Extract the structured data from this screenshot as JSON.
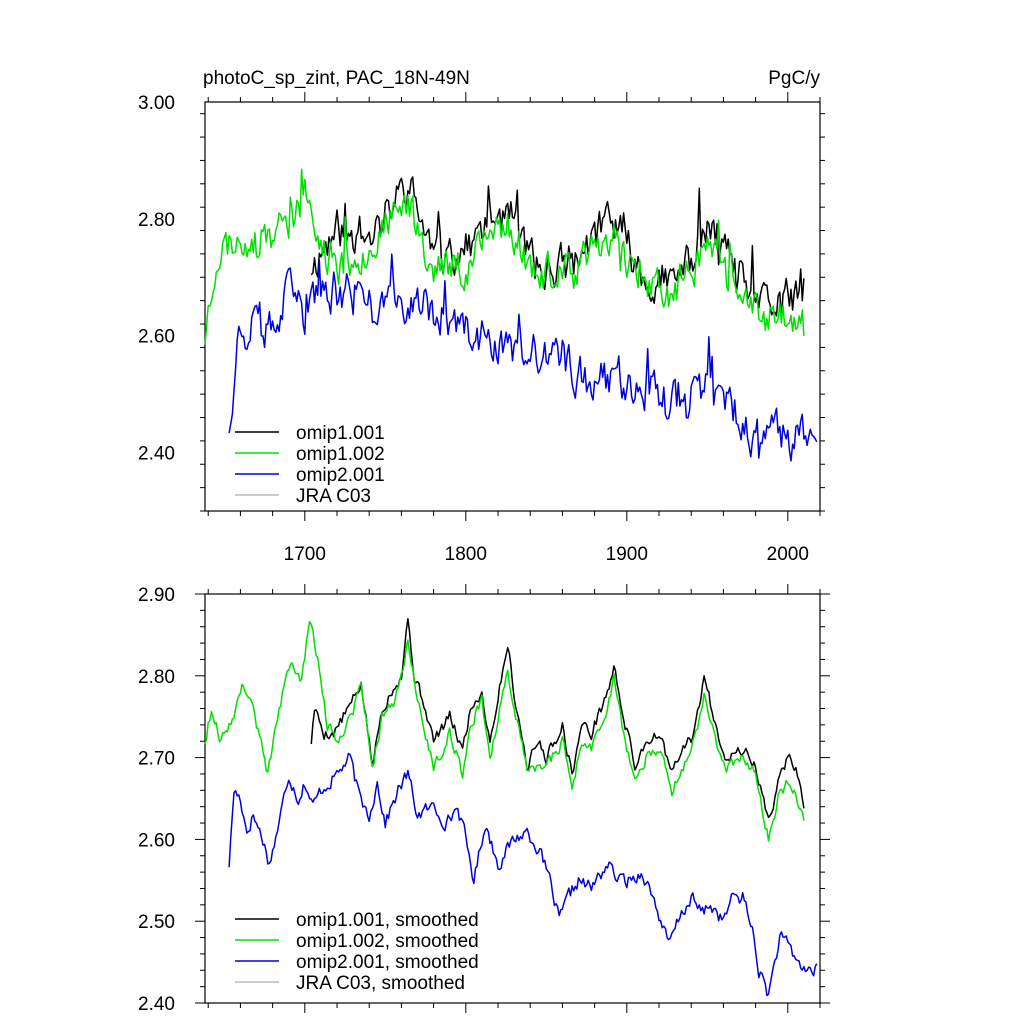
{
  "header": {
    "title": "photoC_sp_zint, PAC_18N-49N",
    "units": "PgC/y"
  },
  "colors": {
    "omip1_001": "#000000",
    "omip1_002": "#00e000",
    "omip2_001": "#0000dd",
    "jra": "#bbbbbb"
  },
  "chart_data": [
    {
      "type": "line",
      "title": "photoC_sp_zint, PAC_18N-49N",
      "units": "PgC/y",
      "xlim": [
        1638,
        2020
      ],
      "ylim": [
        2.3,
        3.0
      ],
      "xticks": [
        1700,
        1800,
        1900,
        2000
      ],
      "xtick_labels": [
        "1700",
        "1800",
        "1900",
        "2000"
      ],
      "yticks": [
        2.4,
        2.6,
        2.8,
        3.0
      ],
      "ytick_labels": [
        "2.40",
        "2.60",
        "2.80",
        "3.00"
      ],
      "legend_position": "bottom-left",
      "series": [
        {
          "name": "omip1.001",
          "color": "#000000",
          "seed": 11,
          "noise": 0.055,
          "anchors": [
            [
              1704,
              2.72
            ],
            [
              1720,
              2.78
            ],
            [
              1740,
              2.77
            ],
            [
              1764,
              2.86
            ],
            [
              1780,
              2.74
            ],
            [
              1800,
              2.75
            ],
            [
              1825,
              2.82
            ],
            [
              1845,
              2.71
            ],
            [
              1870,
              2.73
            ],
            [
              1890,
              2.81
            ],
            [
              1910,
              2.7
            ],
            [
              1930,
              2.69
            ],
            [
              1950,
              2.78
            ],
            [
              1970,
              2.7
            ],
            [
              1985,
              2.65
            ],
            [
              2000,
              2.66
            ],
            [
              2010,
              2.68
            ]
          ]
        },
        {
          "name": "omip1.002",
          "color": "#00e000",
          "seed": 23,
          "noise": 0.055,
          "anchors": [
            [
              1638,
              2.6
            ],
            [
              1645,
              2.74
            ],
            [
              1660,
              2.77
            ],
            [
              1675,
              2.75
            ],
            [
              1690,
              2.8
            ],
            [
              1700,
              2.84
            ],
            [
              1710,
              2.75
            ],
            [
              1720,
              2.72
            ],
            [
              1740,
              2.75
            ],
            [
              1764,
              2.83
            ],
            [
              1780,
              2.72
            ],
            [
              1800,
              2.72
            ],
            [
              1825,
              2.8
            ],
            [
              1845,
              2.7
            ],
            [
              1870,
              2.71
            ],
            [
              1890,
              2.78
            ],
            [
              1910,
              2.69
            ],
            [
              1930,
              2.67
            ],
            [
              1950,
              2.76
            ],
            [
              1970,
              2.68
            ],
            [
              1985,
              2.62
            ],
            [
              2000,
              2.64
            ],
            [
              2010,
              2.62
            ]
          ]
        },
        {
          "name": "omip2.001",
          "color": "#0000dd",
          "seed": 37,
          "noise": 0.06,
          "anchors": [
            [
              1653,
              2.45
            ],
            [
              1658,
              2.6
            ],
            [
              1670,
              2.62
            ],
            [
              1680,
              2.6
            ],
            [
              1690,
              2.67
            ],
            [
              1700,
              2.64
            ],
            [
              1720,
              2.68
            ],
            [
              1740,
              2.66
            ],
            [
              1760,
              2.66
            ],
            [
              1780,
              2.64
            ],
            [
              1800,
              2.6
            ],
            [
              1820,
              2.58
            ],
            [
              1840,
              2.57
            ],
            [
              1860,
              2.55
            ],
            [
              1880,
              2.53
            ],
            [
              1900,
              2.53
            ],
            [
              1920,
              2.5
            ],
            [
              1940,
              2.5
            ],
            [
              1960,
              2.5
            ],
            [
              1980,
              2.42
            ],
            [
              2000,
              2.43
            ],
            [
              2018,
              2.43
            ]
          ]
        },
        {
          "name": "JRA C03",
          "color": "#bbbbbb",
          "anchors": []
        }
      ]
    },
    {
      "type": "line",
      "title": "",
      "xlim": [
        1638,
        2020
      ],
      "ylim": [
        2.4,
        2.9
      ],
      "xticks": [
        1700,
        1800,
        1900,
        2000
      ],
      "xtick_labels": [],
      "yticks": [
        2.4,
        2.5,
        2.6,
        2.7,
        2.8,
        2.9
      ],
      "ytick_labels": [
        "2.40",
        "2.50",
        "2.60",
        "2.70",
        "2.80",
        "2.90"
      ],
      "legend_position": "bottom-left",
      "series": [
        {
          "name": "omip1.001, smoothed",
          "color": "#000000",
          "seed": 5,
          "noise": 0.012,
          "anchors": [
            [
              1704,
              2.72
            ],
            [
              1706,
              2.76
            ],
            [
              1712,
              2.73
            ],
            [
              1718,
              2.73
            ],
            [
              1730,
              2.77
            ],
            [
              1735,
              2.79
            ],
            [
              1742,
              2.69
            ],
            [
              1748,
              2.76
            ],
            [
              1756,
              2.79
            ],
            [
              1760,
              2.8
            ],
            [
              1764,
              2.87
            ],
            [
              1768,
              2.8
            ],
            [
              1775,
              2.76
            ],
            [
              1780,
              2.72
            ],
            [
              1790,
              2.75
            ],
            [
              1798,
              2.71
            ],
            [
              1803,
              2.76
            ],
            [
              1810,
              2.78
            ],
            [
              1815,
              2.72
            ],
            [
              1826,
              2.84
            ],
            [
              1830,
              2.78
            ],
            [
              1838,
              2.69
            ],
            [
              1845,
              2.72
            ],
            [
              1850,
              2.7
            ],
            [
              1860,
              2.74
            ],
            [
              1866,
              2.68
            ],
            [
              1872,
              2.74
            ],
            [
              1878,
              2.73
            ],
            [
              1888,
              2.78
            ],
            [
              1892,
              2.81
            ],
            [
              1898,
              2.75
            ],
            [
              1905,
              2.69
            ],
            [
              1912,
              2.72
            ],
            [
              1920,
              2.73
            ],
            [
              1928,
              2.68
            ],
            [
              1935,
              2.71
            ],
            [
              1942,
              2.73
            ],
            [
              1948,
              2.8
            ],
            [
              1955,
              2.74
            ],
            [
              1962,
              2.7
            ],
            [
              1972,
              2.71
            ],
            [
              1980,
              2.69
            ],
            [
              1988,
              2.62
            ],
            [
              1994,
              2.67
            ],
            [
              2000,
              2.7
            ],
            [
              2005,
              2.69
            ],
            [
              2010,
              2.64
            ]
          ]
        },
        {
          "name": "omip1.002, smoothed",
          "color": "#00e000",
          "seed": 9,
          "noise": 0.012,
          "anchors": [
            [
              1638,
              2.72
            ],
            [
              1642,
              2.76
            ],
            [
              1648,
              2.72
            ],
            [
              1655,
              2.75
            ],
            [
              1662,
              2.79
            ],
            [
              1668,
              2.76
            ],
            [
              1677,
              2.68
            ],
            [
              1684,
              2.76
            ],
            [
              1692,
              2.82
            ],
            [
              1698,
              2.79
            ],
            [
              1703,
              2.87
            ],
            [
              1708,
              2.82
            ],
            [
              1714,
              2.74
            ],
            [
              1720,
              2.72
            ],
            [
              1730,
              2.76
            ],
            [
              1735,
              2.79
            ],
            [
              1742,
              2.69
            ],
            [
              1748,
              2.75
            ],
            [
              1756,
              2.77
            ],
            [
              1764,
              2.84
            ],
            [
              1770,
              2.77
            ],
            [
              1780,
              2.69
            ],
            [
              1790,
              2.73
            ],
            [
              1798,
              2.68
            ],
            [
              1803,
              2.74
            ],
            [
              1810,
              2.77
            ],
            [
              1815,
              2.7
            ],
            [
              1826,
              2.81
            ],
            [
              1830,
              2.76
            ],
            [
              1838,
              2.69
            ],
            [
              1850,
              2.69
            ],
            [
              1860,
              2.72
            ],
            [
              1866,
              2.66
            ],
            [
              1872,
              2.72
            ],
            [
              1878,
              2.71
            ],
            [
              1888,
              2.76
            ],
            [
              1892,
              2.8
            ],
            [
              1898,
              2.73
            ],
            [
              1905,
              2.67
            ],
            [
              1912,
              2.7
            ],
            [
              1920,
              2.71
            ],
            [
              1928,
              2.66
            ],
            [
              1935,
              2.69
            ],
            [
              1942,
              2.72
            ],
            [
              1948,
              2.78
            ],
            [
              1955,
              2.72
            ],
            [
              1962,
              2.69
            ],
            [
              1972,
              2.7
            ],
            [
              1980,
              2.68
            ],
            [
              1988,
              2.6
            ],
            [
              1994,
              2.65
            ],
            [
              2000,
              2.67
            ],
            [
              2005,
              2.66
            ],
            [
              2010,
              2.62
            ]
          ]
        },
        {
          "name": "omip2.001, smoothed",
          "color": "#0000dd",
          "seed": 17,
          "noise": 0.014,
          "anchors": [
            [
              1653,
              2.57
            ],
            [
              1656,
              2.66
            ],
            [
              1660,
              2.65
            ],
            [
              1664,
              2.61
            ],
            [
              1668,
              2.63
            ],
            [
              1674,
              2.6
            ],
            [
              1678,
              2.57
            ],
            [
              1684,
              2.62
            ],
            [
              1690,
              2.68
            ],
            [
              1696,
              2.65
            ],
            [
              1700,
              2.67
            ],
            [
              1705,
              2.64
            ],
            [
              1710,
              2.66
            ],
            [
              1720,
              2.68
            ],
            [
              1728,
              2.7
            ],
            [
              1734,
              2.65
            ],
            [
              1740,
              2.63
            ],
            [
              1745,
              2.67
            ],
            [
              1750,
              2.62
            ],
            [
              1758,
              2.66
            ],
            [
              1764,
              2.68
            ],
            [
              1770,
              2.63
            ],
            [
              1780,
              2.64
            ],
            [
              1788,
              2.62
            ],
            [
              1795,
              2.64
            ],
            [
              1800,
              2.6
            ],
            [
              1805,
              2.55
            ],
            [
              1812,
              2.62
            ],
            [
              1820,
              2.57
            ],
            [
              1830,
              2.6
            ],
            [
              1838,
              2.61
            ],
            [
              1845,
              2.59
            ],
            [
              1852,
              2.55
            ],
            [
              1858,
              2.5
            ],
            [
              1864,
              2.53
            ],
            [
              1870,
              2.55
            ],
            [
              1878,
              2.54
            ],
            [
              1888,
              2.57
            ],
            [
              1895,
              2.55
            ],
            [
              1902,
              2.55
            ],
            [
              1910,
              2.56
            ],
            [
              1918,
              2.52
            ],
            [
              1926,
              2.47
            ],
            [
              1932,
              2.5
            ],
            [
              1940,
              2.53
            ],
            [
              1946,
              2.51
            ],
            [
              1952,
              2.52
            ],
            [
              1960,
              2.5
            ],
            [
              1966,
              2.53
            ],
            [
              1972,
              2.53
            ],
            [
              1978,
              2.49
            ],
            [
              1982,
              2.44
            ],
            [
              1988,
              2.41
            ],
            [
              1995,
              2.48
            ],
            [
              2000,
              2.47
            ],
            [
              2006,
              2.45
            ],
            [
              2012,
              2.44
            ],
            [
              2018,
              2.44
            ]
          ]
        },
        {
          "name": "JRA C03, smoothed",
          "color": "#bbbbbb",
          "anchors": []
        }
      ]
    }
  ]
}
